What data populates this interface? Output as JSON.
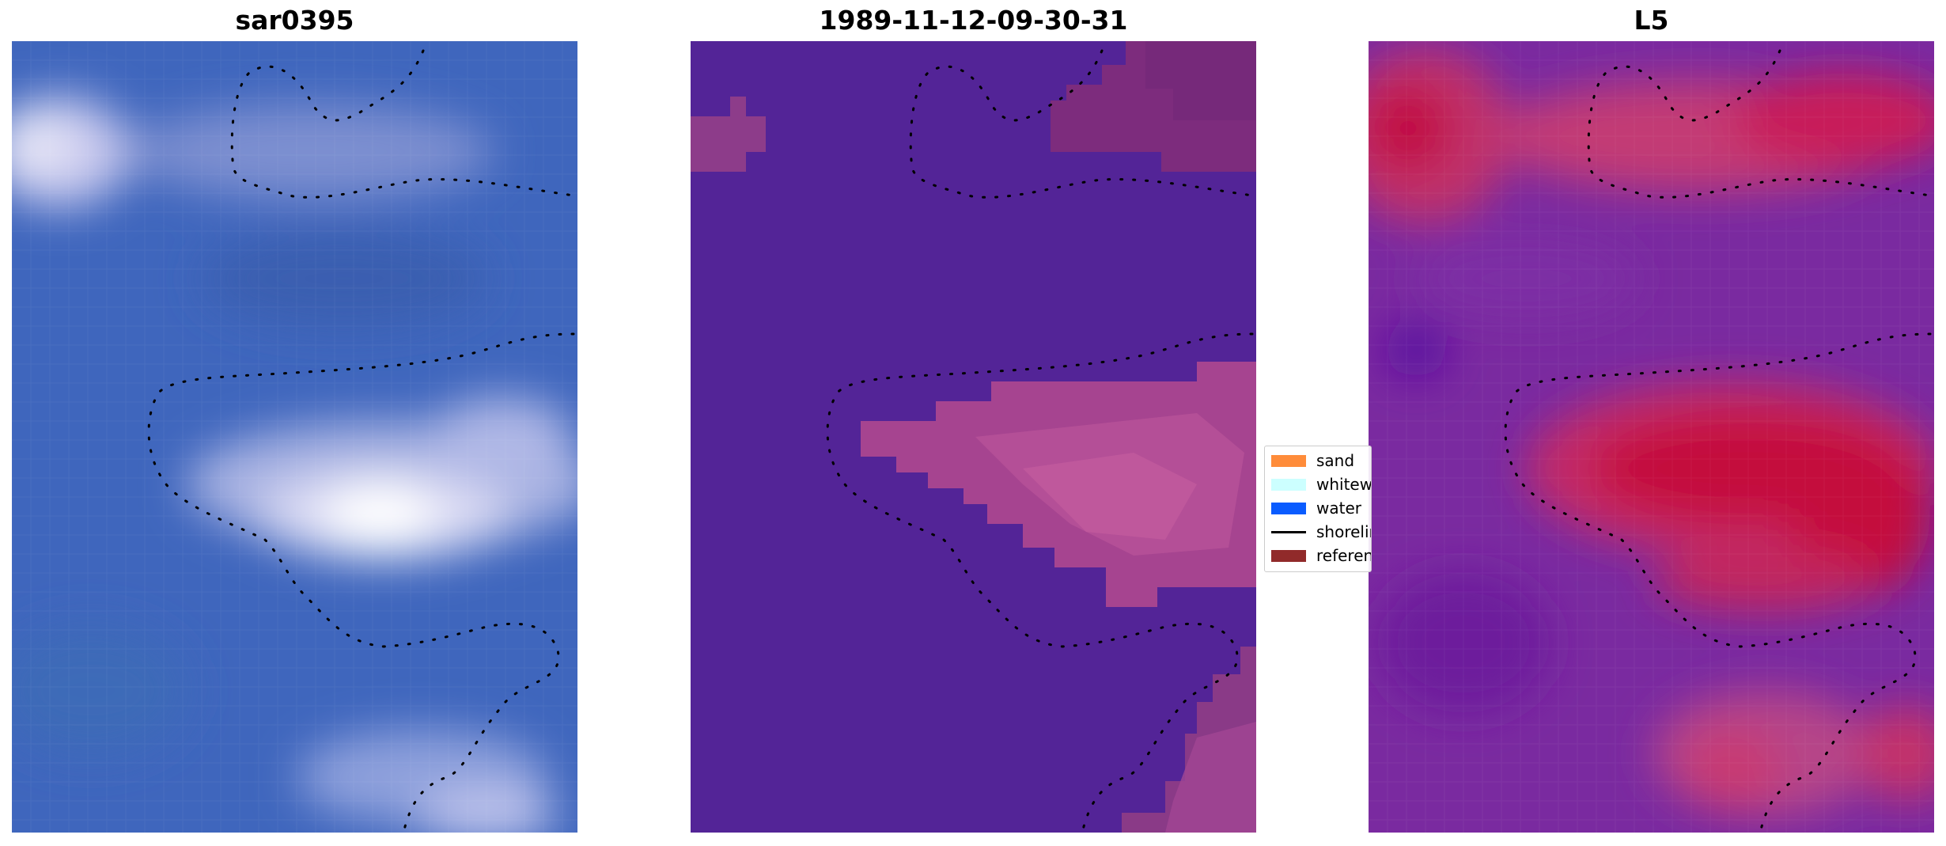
{
  "panels": [
    {
      "title": "sar0395"
    },
    {
      "title": "1989-11-12-09-30-31"
    },
    {
      "title": "L5"
    }
  ],
  "legend": {
    "items": [
      {
        "label": "sand",
        "color": "#ff8c3a",
        "kind": "patch"
      },
      {
        "label": "whitewater",
        "color": "#ccffff",
        "kind": "patch"
      },
      {
        "label": "water",
        "color": "#0a5cff",
        "kind": "patch"
      },
      {
        "label": "shoreline",
        "color": "#000000",
        "kind": "line"
      },
      {
        "label": "reference",
        "color": "#912a2a",
        "kind": "patch"
      }
    ]
  },
  "colors": {
    "rgb_base": "#3f66bd",
    "rgb_highlight": "#eef0ff",
    "classification_water": "#532497",
    "classification_other": "#8f3b87",
    "classification_pink": "#c55a98",
    "index_purple": "#6f1fa3",
    "index_red": "#c40a3e",
    "shoreline": "#000000"
  }
}
